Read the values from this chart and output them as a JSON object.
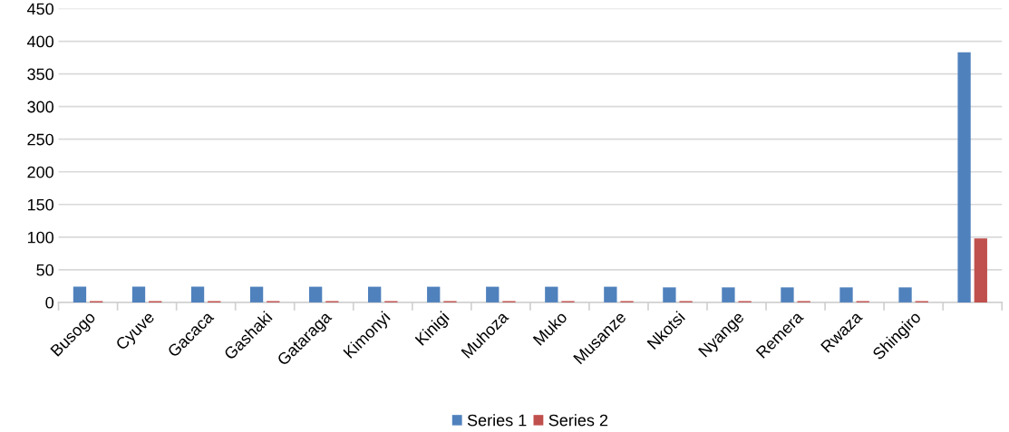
{
  "chart_data": {
    "type": "bar",
    "categories": [
      "Busogo",
      "Cyuve",
      "Gacaca",
      "Gashaki",
      "Gataraga",
      "Kimonyi",
      "Kinigi",
      "Muhoza",
      "Muko",
      "Musanze",
      "Nkotsi",
      "Nyange",
      "Remera",
      "Rwaza",
      "Shingiro",
      null
    ],
    "series": [
      {
        "name": "Series 1",
        "color": "#4f81bd",
        "values": [
          24,
          24,
          24,
          24,
          24,
          24,
          24,
          24,
          24,
          24,
          23,
          23,
          23,
          23,
          23,
          383
        ]
      },
      {
        "name": "Series 2",
        "color": "#c0504d",
        "values": [
          2,
          2,
          2,
          2,
          2,
          2,
          2,
          2,
          2,
          2,
          2,
          2,
          2,
          2,
          2,
          98
        ]
      }
    ],
    "ylim": [
      0,
      450
    ],
    "yticks": [
      0,
      50,
      100,
      150,
      200,
      250,
      300,
      350,
      400,
      450
    ],
    "grid": "y",
    "legend": "bottom"
  }
}
